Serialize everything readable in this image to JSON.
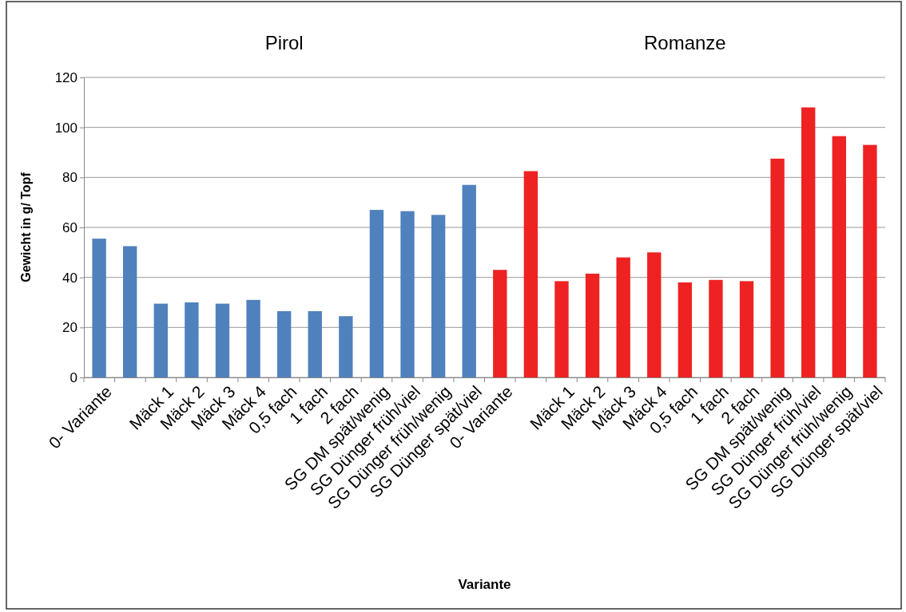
{
  "chart_data": {
    "type": "bar",
    "xlabel": "Variante",
    "ylabel": "Gewicht in g/ Topf",
    "categories": [
      "0- Variante",
      null,
      "Mäck 1",
      "Mäck 2",
      "Mäck 3",
      "Mäck 4",
      "0,5 fach",
      "1 fach",
      "2 fach",
      "SG DM spät/wenig",
      "SG Dünger früh/viel",
      "SG Dünger früh/wenig",
      "SG Dünger spät/viel",
      "0- Variante",
      null,
      "Mäck 1",
      "Mäck 2",
      "Mäck 3",
      "Mäck 4",
      "0,5 fach",
      "1 fach",
      "2 fach",
      "SG DM spät/wenig",
      "SG Dünger früh/viel",
      "SG Dünger früh/wenig",
      "SG Dünger spät/viel"
    ],
    "values": [
      55.5,
      52.5,
      29.5,
      30,
      29.5,
      31,
      26.5,
      26.5,
      24.5,
      67,
      66.5,
      65,
      77,
      43,
      82.5,
      38.5,
      41.5,
      48,
      50,
      38,
      39,
      38.5,
      87.5,
      108,
      96.5,
      93
    ],
    "colors": [
      "#4f81bd",
      "#4f81bd",
      "#4f81bd",
      "#4f81bd",
      "#4f81bd",
      "#4f81bd",
      "#4f81bd",
      "#4f81bd",
      "#4f81bd",
      "#4f81bd",
      "#4f81bd",
      "#4f81bd",
      "#4f81bd",
      "#ee2222",
      "#ee2222",
      "#ee2222",
      "#ee2222",
      "#ee2222",
      "#ee2222",
      "#ee2222",
      "#ee2222",
      "#ee2222",
      "#ee2222",
      "#ee2222",
      "#ee2222",
      "#ee2222"
    ],
    "annotations": [
      "Pirol",
      "Romanze"
    ],
    "ylim": [
      0,
      120
    ],
    "yticks": [
      0,
      20,
      40,
      60,
      80,
      100,
      120
    ],
    "grid": "y"
  }
}
